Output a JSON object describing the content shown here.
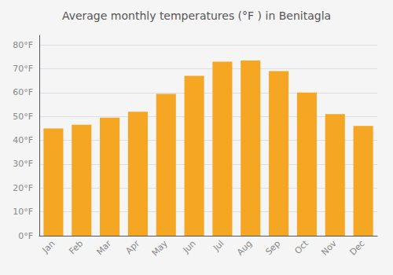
{
  "chart_data": {
    "type": "bar",
    "title": "Average monthly temperatures (°F ) in Benitagla",
    "categories": [
      "Jan",
      "Feb",
      "Mar",
      "Apr",
      "May",
      "Jun",
      "Jul",
      "Aug",
      "Sep",
      "Oct",
      "Nov",
      "Dec"
    ],
    "values": [
      45,
      46.5,
      49.5,
      52,
      59.5,
      67,
      73,
      73.5,
      69,
      60,
      51,
      46
    ],
    "color": "#F5A623",
    "ylim": [
      0,
      84
    ],
    "yticks": [
      {
        "value": 0,
        "label": "0°F"
      },
      {
        "value": 10,
        "label": "10°F"
      },
      {
        "value": 20,
        "label": "20°F"
      },
      {
        "value": 30,
        "label": "30°F"
      },
      {
        "value": 40,
        "label": "40°F"
      },
      {
        "value": 50,
        "label": "50°F"
      },
      {
        "value": 60,
        "label": "60°F"
      },
      {
        "value": 70,
        "label": "70°F"
      },
      {
        "value": 80,
        "label": "80°F"
      }
    ],
    "grid": true
  }
}
